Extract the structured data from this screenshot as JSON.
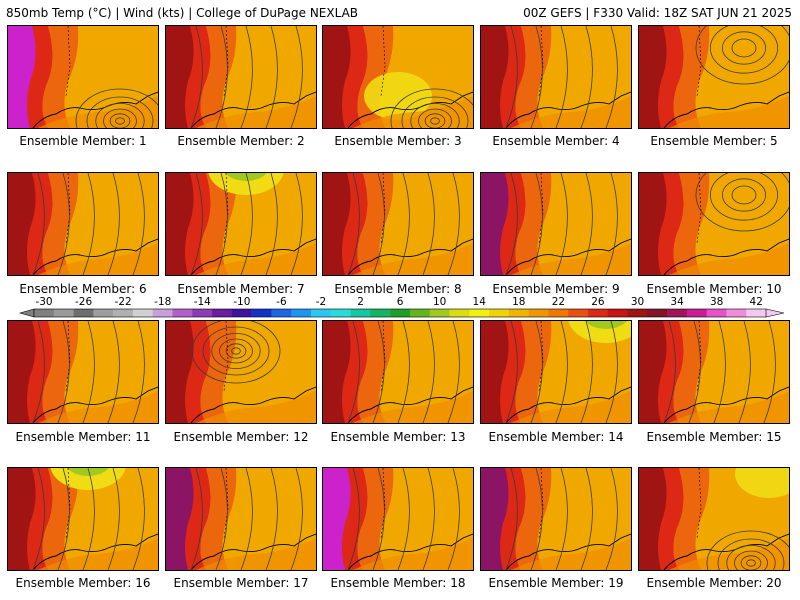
{
  "header": {
    "left": "850mb Temp (°C) | Wind (kts) | College of DuPage NEXLAB",
    "right": "00Z GEFS | F330 Valid: 18Z SAT JUN 21 2025"
  },
  "panels": [
    {
      "label": "Ensemble Member: 1",
      "style": "magenta-west-low-south"
    },
    {
      "label": "Ensemble Member: 2",
      "style": "hot-west"
    },
    {
      "label": "Ensemble Member: 3",
      "style": "yellow-central"
    },
    {
      "label": "Ensemble Member: 4",
      "style": "hot-west"
    },
    {
      "label": "Ensemble Member: 5",
      "style": "red-west-high-ne"
    },
    {
      "label": "Ensemble Member: 6",
      "style": "red-west"
    },
    {
      "label": "Ensemble Member: 7",
      "style": "green-north"
    },
    {
      "label": "Ensemble Member: 8",
      "style": "hot-sw"
    },
    {
      "label": "Ensemble Member: 9",
      "style": "purple-west"
    },
    {
      "label": "Ensemble Member: 10",
      "style": "red-west-high-ne"
    },
    {
      "label": "Ensemble Member: 11",
      "style": "red-west"
    },
    {
      "label": "Ensemble Member: 12",
      "style": "hot-west-low-center"
    },
    {
      "label": "Ensemble Member: 13",
      "style": "red-west"
    },
    {
      "label": "Ensemble Member: 14",
      "style": "green-ne"
    },
    {
      "label": "Ensemble Member: 15",
      "style": "red-west"
    },
    {
      "label": "Ensemble Member: 16",
      "style": "green-north"
    },
    {
      "label": "Ensemble Member: 17",
      "style": "purple-west"
    },
    {
      "label": "Ensemble Member: 18",
      "style": "magenta-nw"
    },
    {
      "label": "Ensemble Member: 19",
      "style": "purple-west"
    },
    {
      "label": "Ensemble Member: 20",
      "style": "yellow-ne"
    }
  ],
  "colorbar": {
    "ticks": [
      "-30",
      "-26",
      "-22",
      "-18",
      "-14",
      "-10",
      "-6",
      "-2",
      "2",
      "6",
      "10",
      "14",
      "18",
      "22",
      "26",
      "30",
      "34",
      "38",
      "42"
    ],
    "colors": [
      "#808080",
      "#9a9a9a",
      "#6e6e6e",
      "#9e9e9e",
      "#b0b0b0",
      "#d0d0d0",
      "#c8a0d8",
      "#b060c8",
      "#8c3cb4",
      "#6a1ea0",
      "#3c14a0",
      "#1432c8",
      "#1e64e6",
      "#1e96f0",
      "#28c8f0",
      "#28dcdc",
      "#14c8a0",
      "#14b464",
      "#1ea028",
      "#64b41e",
      "#a0c81e",
      "#dcdc14",
      "#f0f014",
      "#f0d20a",
      "#f0b400",
      "#f09600",
      "#f07800",
      "#e65014",
      "#dc2814",
      "#c81414",
      "#a01414",
      "#821428",
      "#a0145a",
      "#c81e96",
      "#e650c8",
      "#f08cdc",
      "#f5c8f0"
    ]
  },
  "palette": {
    "magenta": "#cc22cc",
    "purple": "#8c1464",
    "darkred": "#a01414",
    "red": "#dc2814",
    "orangered": "#eb5a0f",
    "orange": "#f08c00",
    "amber": "#f0a800",
    "yellow": "#f0dc14",
    "lightgreen": "#a0c81e",
    "green": "#1ea028",
    "contour": "#3c3c3c",
    "coast": "#000000"
  }
}
